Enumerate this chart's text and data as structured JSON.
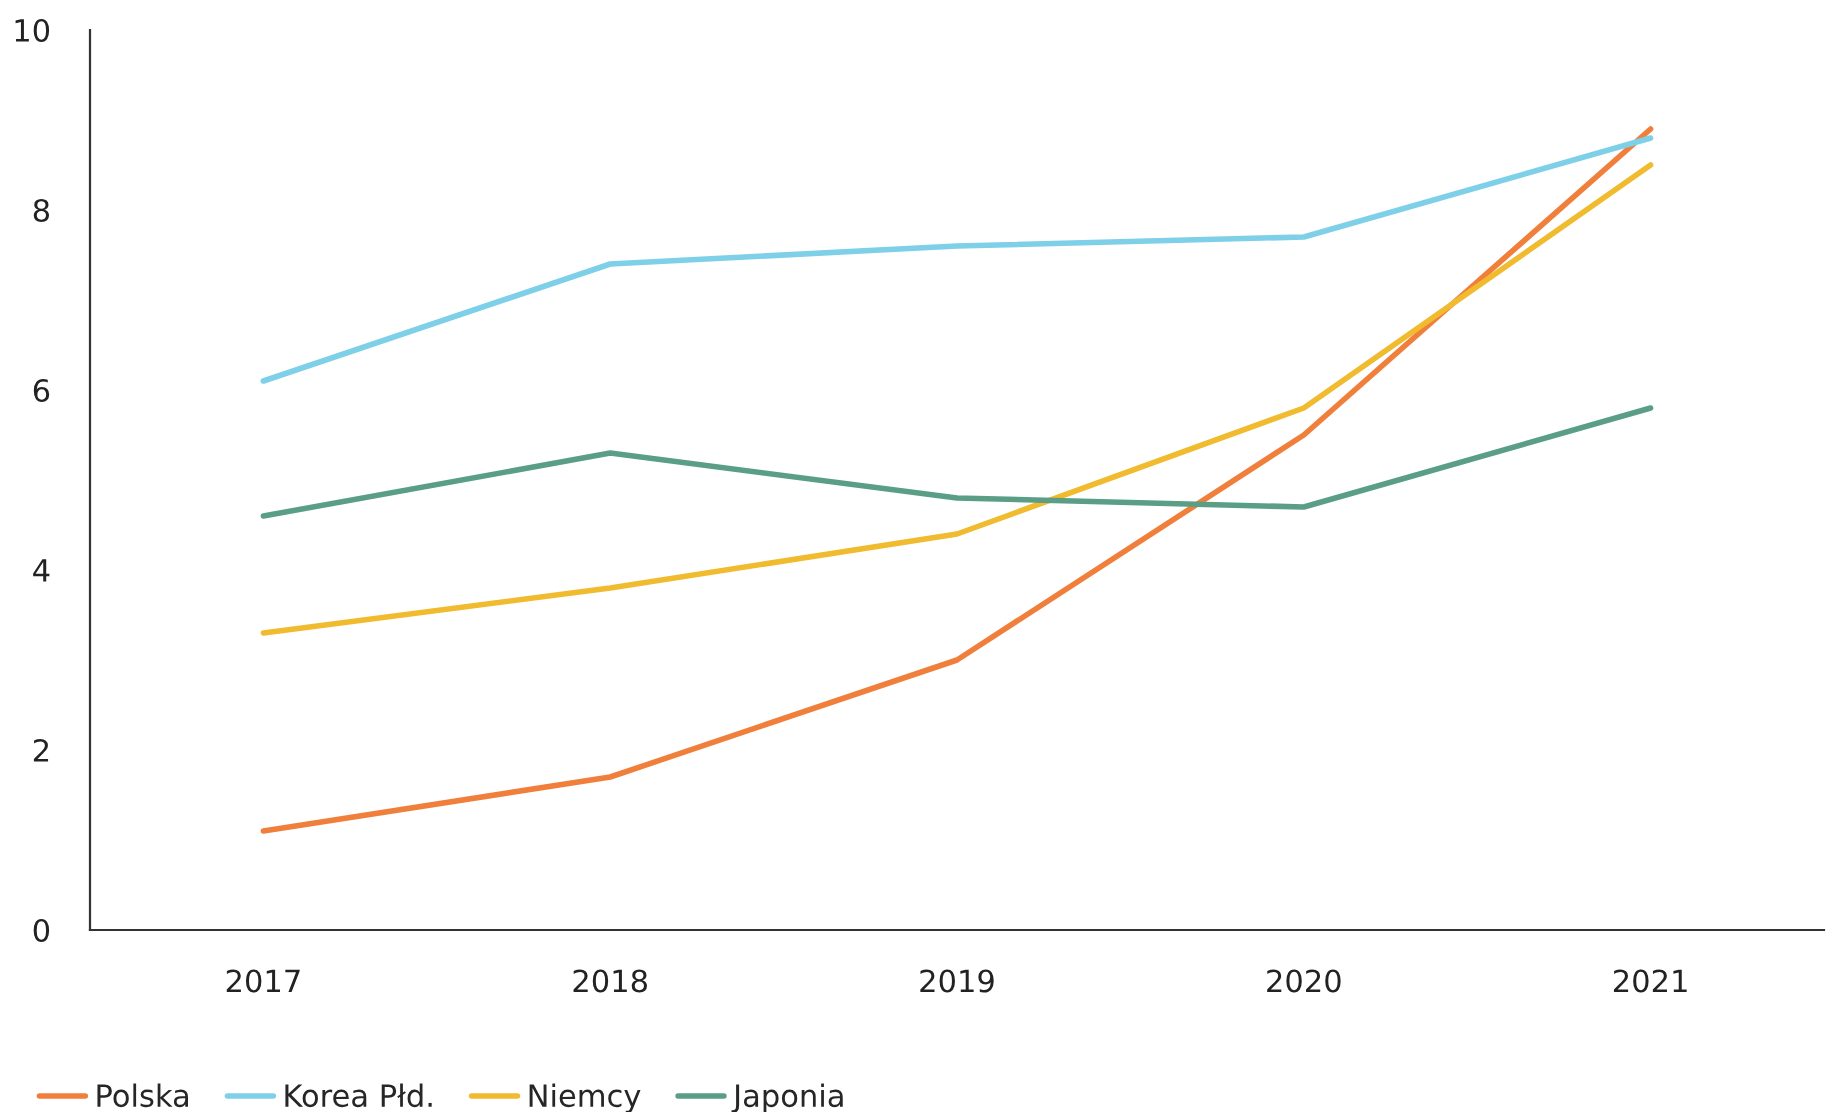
{
  "chart_data": {
    "type": "line",
    "categories": [
      "2017",
      "2018",
      "2019",
      "2020",
      "2021"
    ],
    "series": [
      {
        "name": "Polska",
        "color": "#f07f3c",
        "values": [
          1.1,
          1.7,
          3.0,
          5.5,
          8.9
        ]
      },
      {
        "name": "Korea Płd.",
        "color": "#7ecfe8",
        "values": [
          6.1,
          7.4,
          7.6,
          7.7,
          8.8
        ]
      },
      {
        "name": "Niemcy",
        "color": "#f0bb2e",
        "values": [
          3.3,
          3.8,
          4.4,
          5.8,
          8.5
        ]
      },
      {
        "name": "Japonia",
        "color": "#5a9e86",
        "values": [
          4.6,
          5.3,
          4.8,
          4.7,
          5.8
        ]
      }
    ],
    "ylim": [
      0,
      10
    ],
    "yticks": [
      0,
      2,
      4,
      6,
      8,
      10
    ],
    "legend": "bottom left",
    "grid": false,
    "marker": "none",
    "line_style": "solid"
  }
}
